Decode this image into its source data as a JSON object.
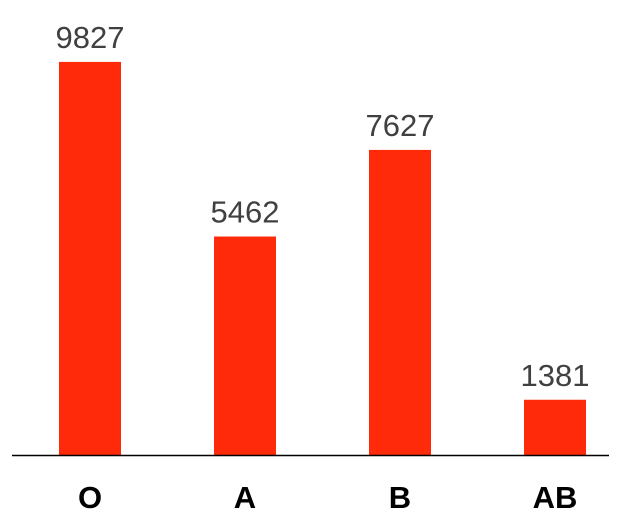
{
  "chart_data": {
    "type": "bar",
    "categories": [
      "O",
      "A",
      "B",
      "AB"
    ],
    "values": [
      9827,
      5462,
      7627,
      1381
    ],
    "title": "",
    "xlabel": "",
    "ylabel": "",
    "ylim": [
      0,
      10000
    ],
    "grid": false,
    "legend": "none",
    "data_labels": true,
    "colors": {
      "bar": "#ff2a0a",
      "value_label": "#404040",
      "category_label": "#000000",
      "axis": "#000000"
    }
  }
}
